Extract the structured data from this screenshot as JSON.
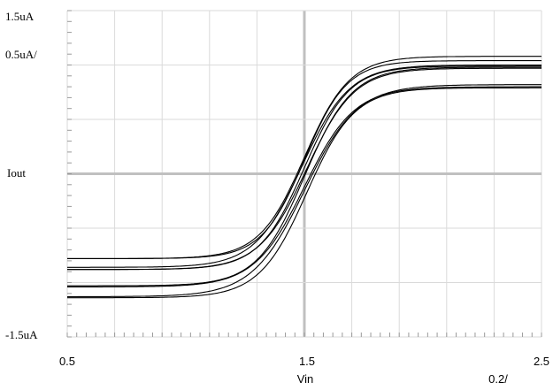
{
  "chart_data": {
    "type": "line",
    "xlabel": "Vin",
    "ylabel": "Iout",
    "xlim": [
      0.5,
      2.5
    ],
    "ylim": [
      -1.5,
      1.5
    ],
    "y_unit": "uA",
    "x_tick_labels": [
      "0.5",
      "1.5",
      "2.5"
    ],
    "x_division_label": "0.2/",
    "y_tick_labels": {
      "top": "1.5uA",
      "bottom": "-1.5uA"
    },
    "y_division_label": "0.5uA/",
    "grid": true,
    "curve_shape": "tanh transfer characteristic centered at Vin = 1.5",
    "series": [
      {
        "low": -0.78,
        "high": 1.08,
        "center": 1.5,
        "width": 0.19
      },
      {
        "low": -0.78,
        "high": 1.04,
        "center": 1.5,
        "width": 0.18
      },
      {
        "low": -0.86,
        "high": 1.0,
        "center": 1.49,
        "width": 0.2
      },
      {
        "low": -0.88,
        "high": 0.99,
        "center": 1.5,
        "width": 0.19
      },
      {
        "low": -0.88,
        "high": 0.97,
        "center": 1.51,
        "width": 0.2
      },
      {
        "low": -1.03,
        "high": 0.98,
        "center": 1.5,
        "width": 0.2
      },
      {
        "low": -1.04,
        "high": 0.8,
        "center": 1.5,
        "width": 0.21
      },
      {
        "low": -1.13,
        "high": 0.82,
        "center": 1.5,
        "width": 0.22
      },
      {
        "low": -1.14,
        "high": 0.79,
        "center": 1.51,
        "width": 0.2
      }
    ]
  }
}
